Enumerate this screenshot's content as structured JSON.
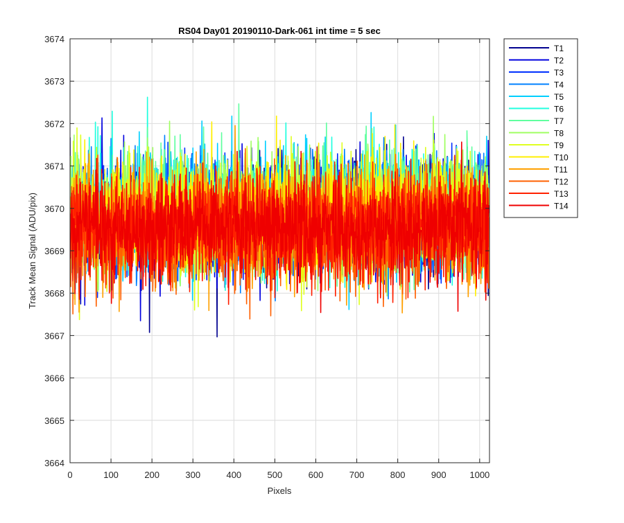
{
  "chart_data": {
    "type": "line",
    "title": "RS04 Day01 20190110-Dark-061 int time = 5 sec",
    "xlabel": "Pixels",
    "ylabel": "Track Mean Signal (ADU/pix)",
    "xlim": [
      0,
      1024
    ],
    "ylim": [
      3664,
      3674
    ],
    "x_ticks": [
      0,
      100,
      200,
      300,
      400,
      500,
      600,
      700,
      800,
      900,
      1000
    ],
    "y_ticks": [
      3664,
      3665,
      3666,
      3667,
      3668,
      3669,
      3670,
      3671,
      3672,
      3673,
      3674
    ],
    "grid": true,
    "legend_position": "outside-top-right",
    "x_points": 1024,
    "series": [
      {
        "name": "T1",
        "color": "#00008f",
        "center": 3669.8,
        "spread": 0.9
      },
      {
        "name": "T2",
        "color": "#0000df",
        "center": 3669.8,
        "spread": 0.9
      },
      {
        "name": "T3",
        "color": "#0030ff",
        "center": 3669.8,
        "spread": 0.9
      },
      {
        "name": "T4",
        "color": "#0080ff",
        "center": 3669.9,
        "spread": 0.9
      },
      {
        "name": "T5",
        "color": "#00cfff",
        "center": 3669.9,
        "spread": 0.9
      },
      {
        "name": "T6",
        "color": "#20ffdf",
        "center": 3669.9,
        "spread": 0.9
      },
      {
        "name": "T7",
        "color": "#60ff9f",
        "center": 3669.9,
        "spread": 0.9
      },
      {
        "name": "T8",
        "color": "#9fff60",
        "center": 3669.9,
        "spread": 0.9
      },
      {
        "name": "T9",
        "color": "#dfff20",
        "center": 3669.9,
        "spread": 0.9
      },
      {
        "name": "T10",
        "color": "#ffef00",
        "center": 3669.8,
        "spread": 0.9
      },
      {
        "name": "T11",
        "color": "#ffa000",
        "center": 3669.6,
        "spread": 0.9
      },
      {
        "name": "T12",
        "color": "#ff6000",
        "center": 3669.5,
        "spread": 0.9
      },
      {
        "name": "T13",
        "color": "#ff2000",
        "center": 3669.5,
        "spread": 0.85
      },
      {
        "name": "T14",
        "color": "#ef0000",
        "center": 3669.5,
        "spread": 0.8
      }
    ]
  }
}
